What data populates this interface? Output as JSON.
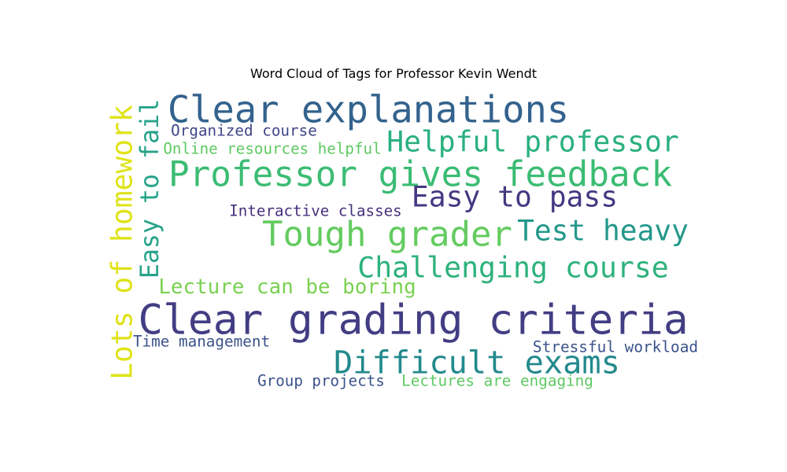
{
  "chart_data": {
    "type": "wordcloud",
    "title": "Word Cloud of Tags for Professor Kevin Wendt",
    "words": [
      {
        "text": "Clear grading criteria",
        "weight": 1.0,
        "color": "#433d84",
        "orientation": "horizontal"
      },
      {
        "text": "Professor gives feedback",
        "weight": 0.82,
        "color": "#3bbc73",
        "orientation": "horizontal"
      },
      {
        "text": "Clear explanations",
        "weight": 0.82,
        "color": "#33628d",
        "orientation": "horizontal"
      },
      {
        "text": "Tough grader",
        "weight": 0.78,
        "color": "#63cb5f",
        "orientation": "horizontal"
      },
      {
        "text": "Difficult exams",
        "weight": 0.72,
        "color": "#238a8d",
        "orientation": "horizontal"
      },
      {
        "text": "Lots of homework",
        "weight": 0.68,
        "color": "#dfe318",
        "orientation": "vertical"
      },
      {
        "text": "Easy to pass",
        "weight": 0.66,
        "color": "#453882",
        "orientation": "horizontal"
      },
      {
        "text": "Helpful professor",
        "weight": 0.62,
        "color": "#2ab07f",
        "orientation": "horizontal"
      },
      {
        "text": "Test heavy",
        "weight": 0.62,
        "color": "#24988b",
        "orientation": "horizontal"
      },
      {
        "text": "Challenging course",
        "weight": 0.62,
        "color": "#2db27d",
        "orientation": "horizontal"
      },
      {
        "text": "Easy to fail",
        "weight": 0.56,
        "color": "#26a38a",
        "orientation": "vertical"
      },
      {
        "text": "Lecture can be boring",
        "weight": 0.45,
        "color": "#7ad151",
        "orientation": "horizontal"
      },
      {
        "text": "Stressful workload",
        "weight": 0.33,
        "color": "#3b528b",
        "orientation": "horizontal"
      },
      {
        "text": "Organized course",
        "weight": 0.33,
        "color": "#404688",
        "orientation": "horizontal"
      },
      {
        "text": "Time management",
        "weight": 0.33,
        "color": "#3b528b",
        "orientation": "horizontal"
      },
      {
        "text": "Interactive classes",
        "weight": 0.32,
        "color": "#46327e",
        "orientation": "horizontal"
      },
      {
        "text": "Group projects",
        "weight": 0.32,
        "color": "#3b528b",
        "orientation": "horizontal"
      },
      {
        "text": "Lectures are engaging",
        "weight": 0.32,
        "color": "#5ec962",
        "orientation": "horizontal"
      },
      {
        "text": "Online resources helpful",
        "weight": 0.31,
        "color": "#5ec962",
        "orientation": "horizontal"
      }
    ]
  }
}
